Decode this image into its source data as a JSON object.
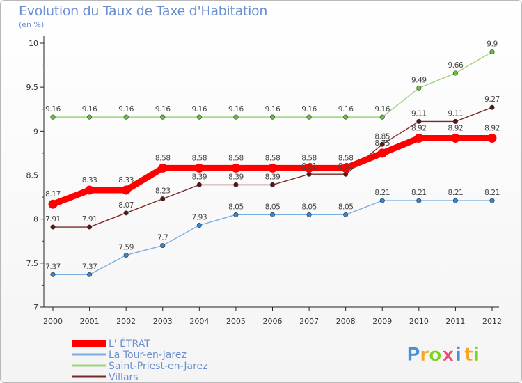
{
  "chart_data": {
    "type": "line",
    "title": "Evolution du Taux de Taxe d'Habitation",
    "subtitle": "(en %)",
    "xlabel": "",
    "ylabel": "",
    "x": [
      "2000",
      "2001",
      "2002",
      "2003",
      "2004",
      "2005",
      "2006",
      "2007",
      "2008",
      "2009",
      "2010",
      "2011",
      "2012"
    ],
    "ylim": [
      7,
      10
    ],
    "yticks": [
      "7",
      "7.5",
      "8",
      "8.5",
      "9",
      "9.5",
      "10"
    ],
    "legend_position": "bottom-left",
    "series": [
      {
        "name": "Villars",
        "color": "#7a2a2a",
        "marker": "#5a1414",
        "values": [
          7.91,
          7.91,
          8.07,
          8.23,
          8.39,
          8.39,
          8.39,
          8.51,
          8.51,
          8.85,
          9.11,
          9.11,
          9.27
        ],
        "labels": [
          "7.91",
          "7.91",
          "8.07",
          "8.23",
          "8.39",
          "8.39",
          "8.39",
          "8.51",
          "8.51",
          "8.85",
          "9.11",
          "9.11",
          "9.27"
        ]
      },
      {
        "name": "Saint-Priest-en-Jarez",
        "color": "#9ed47a",
        "marker": "#6cc040",
        "values": [
          9.16,
          9.16,
          9.16,
          9.16,
          9.16,
          9.16,
          9.16,
          9.16,
          9.16,
          9.16,
          9.49,
          9.66,
          9.9
        ],
        "labels": [
          "9.16",
          "9.16",
          "9.16",
          "9.16",
          "9.16",
          "9.16",
          "9.16",
          "9.16",
          "9.16",
          "9.16",
          "9.49",
          "9.66",
          "9.9"
        ]
      },
      {
        "name": "La Tour-en-Jarez",
        "color": "#78aee0",
        "marker": "#3d87c6",
        "values": [
          7.37,
          7.37,
          7.59,
          7.7,
          7.93,
          8.05,
          8.05,
          8.05,
          8.05,
          8.21,
          8.21,
          8.21,
          8.21
        ],
        "labels": [
          "7.37",
          "7.37",
          "7.59",
          "7.7",
          "7.93",
          "8.05",
          "8.05",
          "8.05",
          "8.05",
          "8.21",
          "8.21",
          "8.21",
          "8.21"
        ]
      },
      {
        "name": "L' ÉTRAT",
        "color": "#ff0000",
        "marker": "#ff0000",
        "values": [
          8.17,
          8.33,
          8.33,
          8.58,
          8.58,
          8.58,
          8.58,
          8.58,
          8.58,
          8.75,
          8.92,
          8.92,
          8.92
        ],
        "labels": [
          "8.17",
          "8.33",
          "8.33",
          "8.58",
          "8.58",
          "8.58",
          "8.58",
          "8.58",
          "8.58",
          "8.75",
          "8.92",
          "8.92",
          "8.92"
        ]
      }
    ],
    "legend": [
      "L' ÉTRAT",
      "La Tour-en-Jarez",
      "Saint-Priest-en-Jarez",
      "Villars"
    ]
  },
  "brand": {
    "letters": [
      "P",
      "r",
      "o",
      "x",
      "i",
      "t",
      "i"
    ],
    "colors": [
      "#4a90d9",
      "#f5a623",
      "#7ed321",
      "#e94e77",
      "#4a90d9",
      "#f5a623",
      "#7ed321"
    ]
  }
}
